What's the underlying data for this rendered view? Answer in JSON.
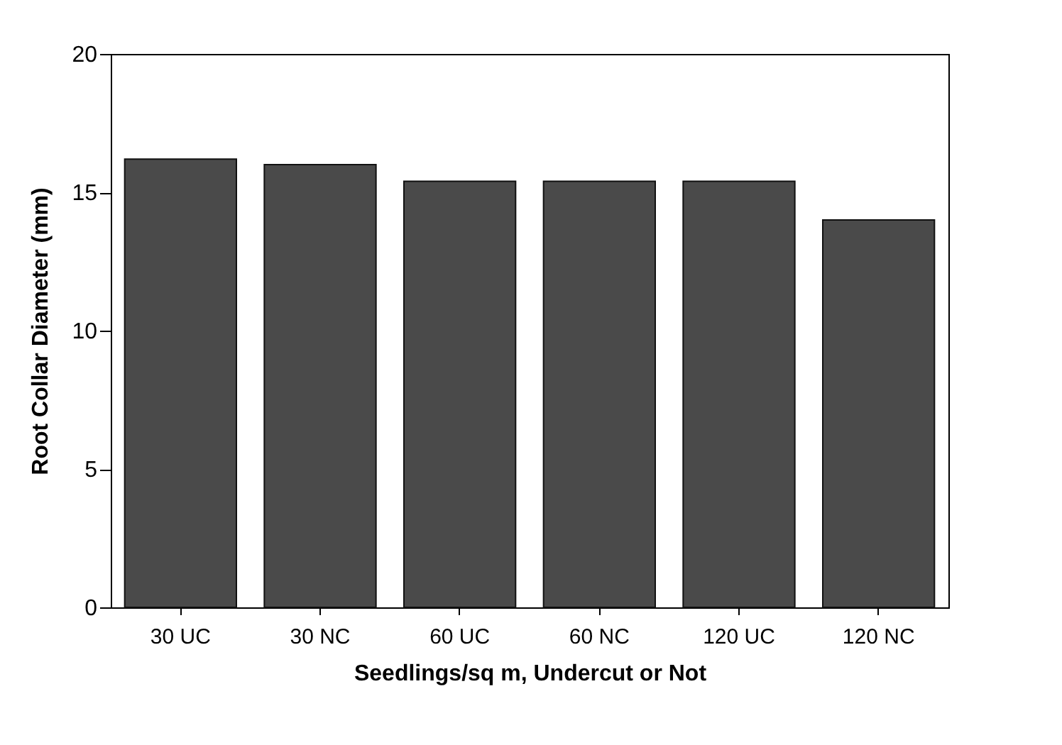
{
  "chart_data": {
    "type": "bar",
    "xlabel": "Seedlings/sq m, Undercut or Not",
    "ylabel": "Root Collar Diameter (mm)",
    "categories": [
      "30 UC",
      "30 NC",
      "60 UC",
      "60 NC",
      "120 UC",
      "120 NC"
    ],
    "values": [
      16.2,
      16.0,
      15.4,
      15.4,
      15.4,
      14.0
    ],
    "color": "#4a4a4a",
    "ylim": [
      0,
      20
    ],
    "yticks": [
      0,
      5,
      10,
      15,
      20
    ],
    "grid": false
  }
}
